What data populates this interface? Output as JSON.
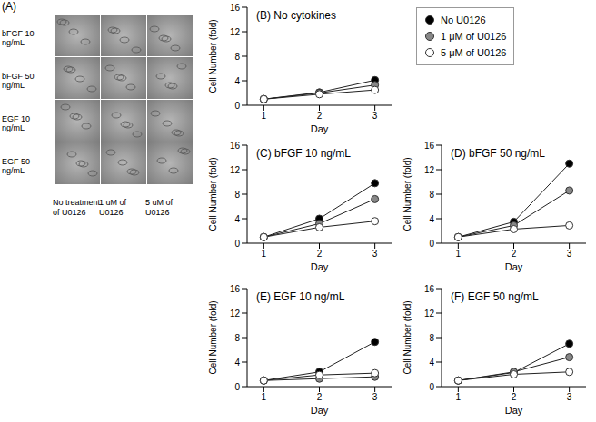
{
  "image_panel": {
    "label": "(A)",
    "rows": [
      "bFGF 10 ng/mL",
      "bFGF 50 ng/mL",
      "EGF 10 ng/mL",
      "EGF 50 ng/mL"
    ],
    "columns": [
      "No treatment of U0126",
      "1 uM of U0126",
      "5 uM of U0126"
    ]
  },
  "chart_data": [
    {
      "type": "line",
      "title": "(B) No cytokines",
      "x": [
        1,
        2,
        3
      ],
      "xlim": [
        0.7,
        3.3
      ],
      "xticks": [
        1,
        2,
        3
      ],
      "ylim": [
        0,
        16
      ],
      "yticks": [
        0,
        4,
        8,
        12,
        16
      ],
      "x_label": "Day",
      "y_label": "Cell Number (fold)",
      "marker": "circle",
      "series": [
        {
          "name": "No U0126",
          "color": "#000000",
          "values": [
            1,
            2.1,
            4.1
          ]
        },
        {
          "name": "1 μM of U0126",
          "color": "#888888",
          "values": [
            1,
            2.0,
            3.3
          ]
        },
        {
          "name": "5 μM of U0126",
          "color": "#ffffff",
          "values": [
            1,
            1.8,
            2.5
          ]
        }
      ]
    },
    {
      "type": "line",
      "title": "(C) bFGF 10 ng/mL",
      "x": [
        1,
        2,
        3
      ],
      "xlim": [
        0.7,
        3.3
      ],
      "xticks": [
        1,
        2,
        3
      ],
      "ylim": [
        0,
        16
      ],
      "yticks": [
        0,
        4,
        8,
        12,
        16
      ],
      "x_label": "Day",
      "y_label": "Cell Number (fold)",
      "marker": "circle",
      "series": [
        {
          "name": "No U0126",
          "color": "#000000",
          "values": [
            1,
            4.0,
            9.8
          ]
        },
        {
          "name": "1 μM of U0126",
          "color": "#888888",
          "values": [
            1,
            3.2,
            7.2
          ]
        },
        {
          "name": "5 μM of U0126",
          "color": "#ffffff",
          "values": [
            1,
            2.6,
            3.6
          ]
        }
      ]
    },
    {
      "type": "line",
      "title": "(D) bFGF 50 ng/mL",
      "x": [
        1,
        2,
        3
      ],
      "xlim": [
        0.7,
        3.3
      ],
      "xticks": [
        1,
        2,
        3
      ],
      "ylim": [
        0,
        16
      ],
      "yticks": [
        0,
        4,
        8,
        12,
        16
      ],
      "x_label": "Day",
      "y_label": "Cell Number (fold)",
      "marker": "circle",
      "series": [
        {
          "name": "No U0126",
          "color": "#000000",
          "values": [
            1,
            3.5,
            13.0
          ]
        },
        {
          "name": "1 μM of U0126",
          "color": "#888888",
          "values": [
            1,
            2.9,
            8.6
          ]
        },
        {
          "name": "5 μM of U0126",
          "color": "#ffffff",
          "values": [
            1,
            2.3,
            2.9
          ]
        }
      ]
    },
    {
      "type": "line",
      "title": "(E) EGF 10 ng/mL",
      "x": [
        1,
        2,
        3
      ],
      "xlim": [
        0.7,
        3.3
      ],
      "xticks": [
        1,
        2,
        3
      ],
      "ylim": [
        0,
        16
      ],
      "yticks": [
        0,
        4,
        8,
        12,
        16
      ],
      "x_label": "Day",
      "y_label": "Cell Number (fold)",
      "marker": "circle",
      "series": [
        {
          "name": "No U0126",
          "color": "#000000",
          "values": [
            1,
            2.4,
            7.3
          ]
        },
        {
          "name": "1 μM of U0126",
          "color": "#888888",
          "values": [
            1,
            1.3,
            1.6
          ]
        },
        {
          "name": "5 μM of U0126",
          "color": "#ffffff",
          "values": [
            1,
            1.9,
            2.2
          ]
        }
      ]
    },
    {
      "type": "line",
      "title": "(F) EGF 50 ng/mL",
      "x": [
        1,
        2,
        3
      ],
      "xlim": [
        0.7,
        3.3
      ],
      "xticks": [
        1,
        2,
        3
      ],
      "ylim": [
        0,
        16
      ],
      "yticks": [
        0,
        4,
        8,
        12,
        16
      ],
      "x_label": "Day",
      "y_label": "Cell Number (fold)",
      "marker": "circle",
      "series": [
        {
          "name": "No U0126",
          "color": "#000000",
          "values": [
            1,
            2.3,
            7.0
          ]
        },
        {
          "name": "1 μM of U0126",
          "color": "#888888",
          "values": [
            1,
            2.4,
            4.8
          ]
        },
        {
          "name": "5 μM of U0126",
          "color": "#ffffff",
          "values": [
            1,
            2.0,
            2.4
          ]
        }
      ]
    }
  ]
}
